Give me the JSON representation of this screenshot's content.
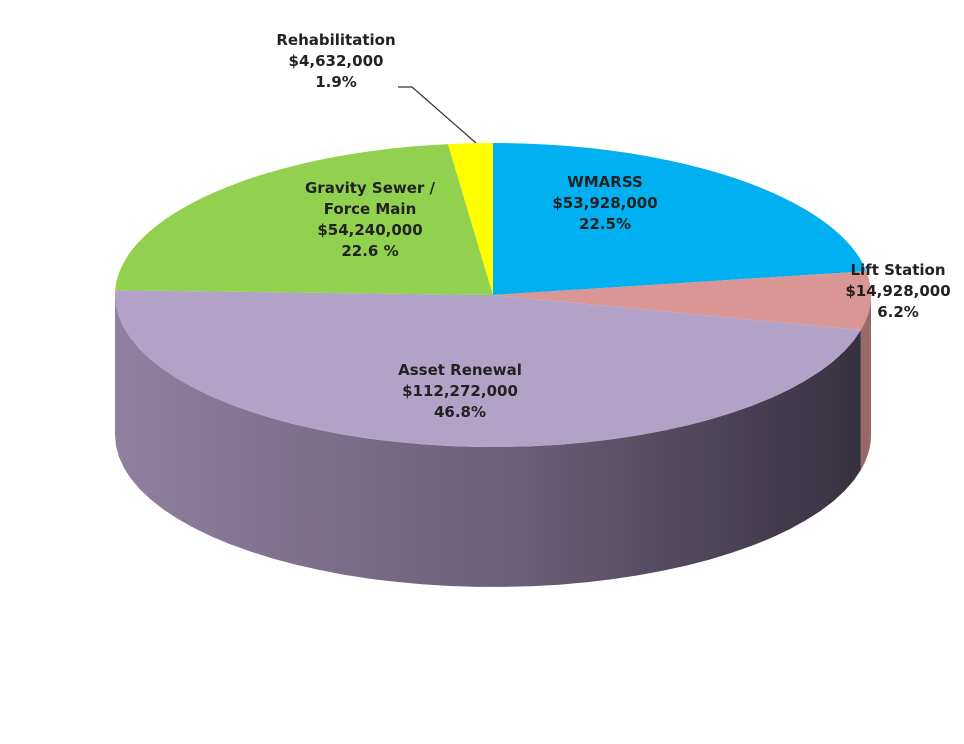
{
  "chart_data": {
    "type": "pie",
    "categories": [
      "WMARSS",
      "Lift Station",
      "Asset Renewal",
      "Gravity Sewer / Force Main",
      "Rehabilitation"
    ],
    "values": [
      22.5,
      6.2,
      46.8,
      22.6,
      1.9
    ],
    "value_labels": [
      "22.5%",
      "6.2%",
      "46.8%",
      "22.6 %",
      "1.9%"
    ],
    "amounts": [
      53928000,
      14928000,
      112272000,
      54240000,
      4632000
    ],
    "amount_labels": [
      "$53,928,000",
      "$14,928,000",
      "$112,272,000",
      "$54,240,000",
      "$4,632,000"
    ],
    "colors": [
      "#00b0f0",
      "#d99694",
      "#b3a2c7",
      "#92d050",
      "#ffff00"
    ]
  }
}
